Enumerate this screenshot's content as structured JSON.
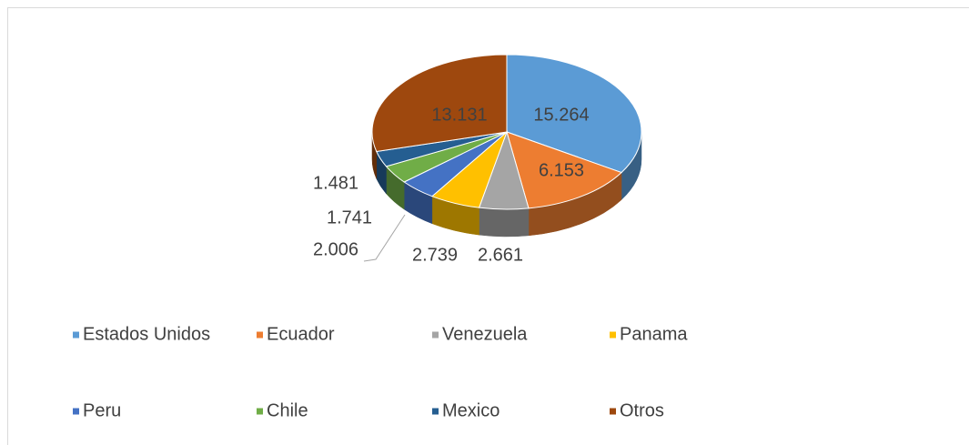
{
  "chart_data": {
    "type": "pie3d",
    "categories": [
      "Estados Unidos",
      "Ecuador",
      "Venezuela",
      "Panama",
      "Peru",
      "Chile",
      "Mexico",
      "Otros"
    ],
    "values": [
      15.264,
      6.153,
      2.661,
      2.739,
      2.006,
      1.741,
      1.481,
      13.131
    ],
    "colors": [
      "#5b9bd5",
      "#ed7d31",
      "#a5a5a5",
      "#ffc000",
      "#4472c4",
      "#70ad47",
      "#255e91",
      "#9e480e"
    ],
    "legend": "bottom"
  }
}
